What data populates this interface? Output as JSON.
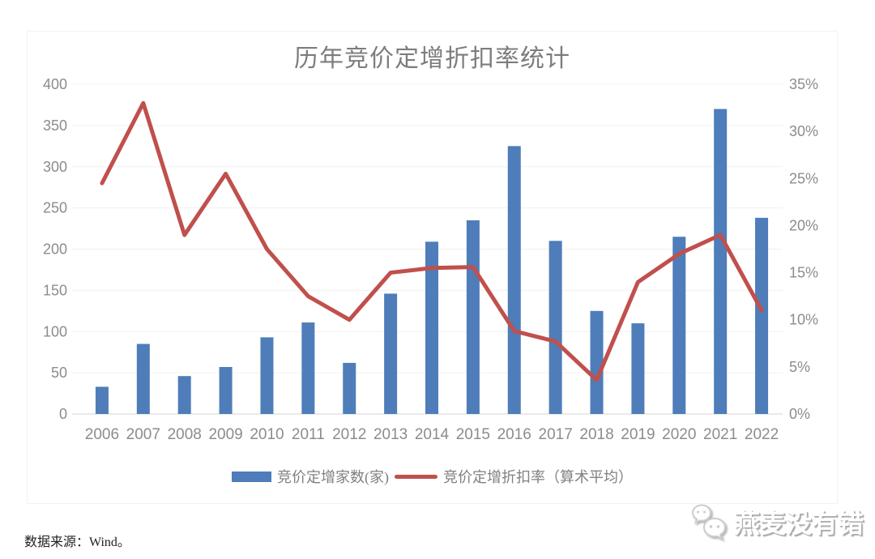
{
  "chart_data": {
    "type": "combo",
    "title": "历年竞价定增折扣率统计",
    "categories": [
      "2006",
      "2007",
      "2008",
      "2009",
      "2010",
      "2011",
      "2012",
      "2013",
      "2014",
      "2015",
      "2016",
      "2017",
      "2018",
      "2019",
      "2020",
      "2021",
      "2022"
    ],
    "series": [
      {
        "name": "竞价定增家数(家)",
        "type": "bar",
        "axis": "left",
        "color": "#4e7dba",
        "values": [
          33,
          85,
          46,
          57,
          93,
          111,
          62,
          146,
          209,
          235,
          325,
          210,
          125,
          110,
          215,
          370,
          238
        ]
      },
      {
        "name": "竞价定增折扣率（算术平均）",
        "type": "line",
        "axis": "right",
        "unit": "%",
        "color": "#c0504d",
        "values": [
          24.5,
          33,
          19,
          25.5,
          17.5,
          12.5,
          10,
          15,
          15.5,
          15.6,
          8.8,
          7.7,
          3.6,
          14,
          17,
          19,
          11
        ]
      }
    ],
    "left_axis": {
      "min": 0,
      "max": 400,
      "step": 50,
      "tick_labels": [
        "0",
        "50",
        "100",
        "150",
        "200",
        "250",
        "300",
        "350",
        "400"
      ]
    },
    "right_axis": {
      "min": 0,
      "max": 35,
      "step": 5,
      "tick_labels": [
        "0%",
        "5%",
        "10%",
        "15%",
        "20%",
        "25%",
        "30%",
        "35%"
      ]
    },
    "grid": true,
    "legend_position": "bottom"
  },
  "footer": {
    "source_text": "数据来源：Wind。"
  },
  "watermark": {
    "text": "燕麦没有错",
    "icon": "wechat-bubbles-icon"
  },
  "colors": {
    "bar": "#4e7dba",
    "line": "#c0504d",
    "grid": "#f0f0f0",
    "axis_line": "#d6d6d6",
    "tick_text": "#8c8c8c",
    "title_text": "#7d7d7d",
    "legend_text": "#808080"
  }
}
